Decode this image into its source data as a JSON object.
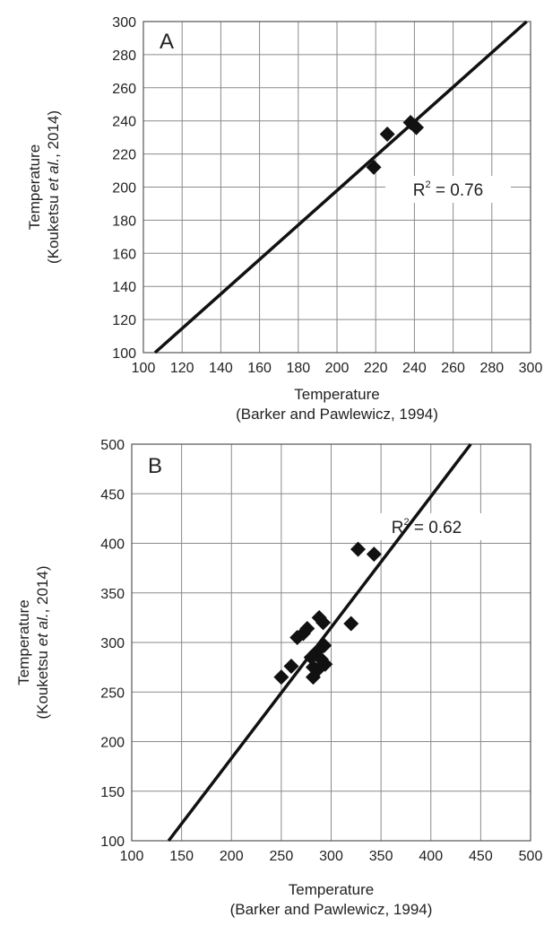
{
  "chart_data": [
    {
      "type": "scatter",
      "panel_label": "A",
      "xlabel": [
        "Temperature",
        "(Barker and Pawlewicz, 1994)"
      ],
      "ylabel": [
        "Temperature",
        "(Kouketsu et al., 2014)"
      ],
      "xlim": [
        100,
        300
      ],
      "ylim": [
        100,
        300
      ],
      "xticks": [
        100,
        120,
        140,
        160,
        180,
        200,
        220,
        240,
        260,
        280,
        300
      ],
      "yticks": [
        100,
        120,
        140,
        160,
        180,
        200,
        220,
        240,
        260,
        280,
        300
      ],
      "grid": true,
      "points": [
        {
          "x": 219,
          "y": 212
        },
        {
          "x": 226,
          "y": 232
        },
        {
          "x": 238,
          "y": 239
        },
        {
          "x": 241,
          "y": 236
        }
      ],
      "trendline": [
        [
          106,
          100
        ],
        [
          298,
          300
        ]
      ],
      "annotation": "R² = 0.76",
      "annotation_base": "R",
      "annotation_sup": "2",
      "annotation_rest": " = 0.76"
    },
    {
      "type": "scatter",
      "panel_label": "B",
      "xlabel": [
        "Temperature",
        "(Barker and Pawlewicz, 1994)"
      ],
      "ylabel": [
        "Temperature",
        "(Kouketsu et al., 2014)"
      ],
      "xlim": [
        100,
        500
      ],
      "ylim": [
        100,
        500
      ],
      "xticks": [
        100,
        150,
        200,
        250,
        300,
        350,
        400,
        450,
        500
      ],
      "yticks": [
        100,
        150,
        200,
        250,
        300,
        350,
        400,
        450,
        500
      ],
      "grid": true,
      "points": [
        {
          "x": 250,
          "y": 265
        },
        {
          "x": 260,
          "y": 276
        },
        {
          "x": 266,
          "y": 305
        },
        {
          "x": 272,
          "y": 309
        },
        {
          "x": 276,
          "y": 314
        },
        {
          "x": 280,
          "y": 285
        },
        {
          "x": 282,
          "y": 275
        },
        {
          "x": 282,
          "y": 265
        },
        {
          "x": 285,
          "y": 290
        },
        {
          "x": 286,
          "y": 272
        },
        {
          "x": 288,
          "y": 325
        },
        {
          "x": 290,
          "y": 283
        },
        {
          "x": 292,
          "y": 320
        },
        {
          "x": 293,
          "y": 297
        },
        {
          "x": 294,
          "y": 278
        },
        {
          "x": 320,
          "y": 319
        },
        {
          "x": 327,
          "y": 394
        },
        {
          "x": 343,
          "y": 389
        }
      ],
      "trendline": [
        [
          137,
          100
        ],
        [
          440,
          500
        ]
      ],
      "annotation": "R² = 0.62",
      "annotation_base": "R",
      "annotation_sup": "2",
      "annotation_rest": " = 0.62"
    }
  ]
}
